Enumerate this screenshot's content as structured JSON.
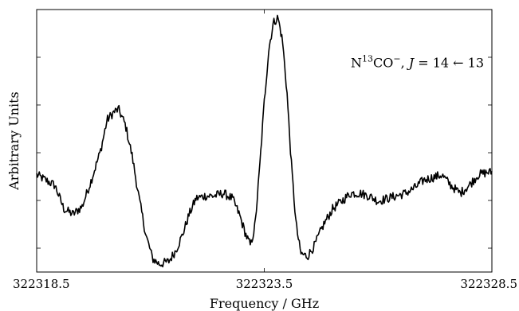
{
  "chart_data": {
    "type": "line",
    "title": "",
    "xlabel": "Frequency / GHz",
    "ylabel": "Arbitrary Units",
    "xlim": [
      322318.5,
      322328.5
    ],
    "ylim": [
      0,
      1
    ],
    "x_ticks": [
      "322318.5",
      "322323.5",
      "322328.5"
    ],
    "y_ticks_labeled": false,
    "y_tick_values": [
      0.0909,
      0.2727,
      0.4545,
      0.6364,
      0.8182
    ],
    "grid": false,
    "annotation": {
      "species_main": "N",
      "species_sup": "13",
      "species_rest": "CO",
      "charge": "−",
      "transition_j": "J",
      "transition_rest": " = 14 ← 13",
      "x": 322325.4,
      "y": 0.78
    },
    "series": [
      {
        "color": "#000000",
        "points": [
          [
            322318.5,
            0.37
          ],
          [
            322318.7,
            0.35
          ],
          [
            322318.9,
            0.33
          ],
          [
            322319.1,
            0.24
          ],
          [
            322319.3,
            0.22
          ],
          [
            322319.5,
            0.25
          ],
          [
            322319.7,
            0.35
          ],
          [
            322319.9,
            0.46
          ],
          [
            322320.05,
            0.58
          ],
          [
            322320.2,
            0.61
          ],
          [
            322320.3,
            0.62
          ],
          [
            322320.45,
            0.56
          ],
          [
            322320.6,
            0.44
          ],
          [
            322320.75,
            0.28
          ],
          [
            322320.9,
            0.14
          ],
          [
            322321.05,
            0.05
          ],
          [
            322321.2,
            0.03
          ],
          [
            322321.4,
            0.04
          ],
          [
            322321.55,
            0.08
          ],
          [
            322321.7,
            0.14
          ],
          [
            322321.85,
            0.22
          ],
          [
            322322.0,
            0.28
          ],
          [
            322322.2,
            0.29
          ],
          [
            322322.4,
            0.29
          ],
          [
            322322.6,
            0.3
          ],
          [
            322322.8,
            0.28
          ],
          [
            322322.95,
            0.22
          ],
          [
            322323.1,
            0.14
          ],
          [
            322323.2,
            0.1
          ],
          [
            322323.3,
            0.18
          ],
          [
            322323.4,
            0.4
          ],
          [
            322323.5,
            0.65
          ],
          [
            322323.6,
            0.85
          ],
          [
            322323.7,
            0.95
          ],
          [
            322323.8,
            0.97
          ],
          [
            322323.9,
            0.88
          ],
          [
            322324.0,
            0.68
          ],
          [
            322324.1,
            0.4
          ],
          [
            322324.2,
            0.18
          ],
          [
            322324.3,
            0.07
          ],
          [
            322324.45,
            0.06
          ],
          [
            322324.6,
            0.1
          ],
          [
            322324.8,
            0.18
          ],
          [
            322325.0,
            0.24
          ],
          [
            322325.2,
            0.27
          ],
          [
            322325.4,
            0.3
          ],
          [
            322325.6,
            0.3
          ],
          [
            322325.8,
            0.29
          ],
          [
            322326.0,
            0.27
          ],
          [
            322326.2,
            0.28
          ],
          [
            322326.4,
            0.29
          ],
          [
            322326.6,
            0.3
          ],
          [
            322326.8,
            0.32
          ],
          [
            322327.0,
            0.35
          ],
          [
            322327.2,
            0.36
          ],
          [
            322327.4,
            0.37
          ],
          [
            322327.6,
            0.33
          ],
          [
            322327.8,
            0.3
          ],
          [
            322328.0,
            0.33
          ],
          [
            322328.2,
            0.37
          ],
          [
            322328.4,
            0.38
          ],
          [
            322328.5,
            0.38
          ]
        ]
      }
    ]
  }
}
